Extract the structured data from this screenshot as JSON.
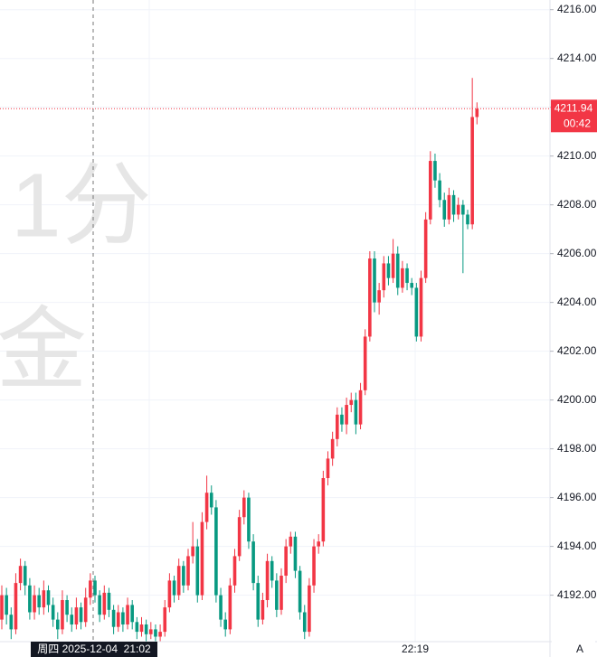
{
  "chart_data": {
    "type": "candlestick",
    "watermark": [
      "1分",
      "金"
    ],
    "up_color": "#f23645",
    "down_color": "#089981",
    "ylim": [
      4189.9,
      4216.3
    ],
    "yticks": [
      {
        "value": 4192,
        "label": "4192.00"
      },
      {
        "value": 4194,
        "label": "4194.00"
      },
      {
        "value": 4196,
        "label": "4196.00"
      },
      {
        "value": 4198,
        "label": "4198.00"
      },
      {
        "value": 4200,
        "label": "4200.00"
      },
      {
        "value": 4202,
        "label": "4202.00"
      },
      {
        "value": 4204,
        "label": "4204.00"
      },
      {
        "value": 4206,
        "label": "4206.00"
      },
      {
        "value": 4208,
        "label": "4208.00"
      },
      {
        "value": 4210,
        "label": "4210.00"
      },
      {
        "value": 4212,
        "label": "4212.00"
      },
      {
        "value": 4214,
        "label": "4214.00"
      },
      {
        "value": 4216,
        "label": "4216.00"
      }
    ],
    "grid": true,
    "time_labels": [
      "22:19"
    ],
    "crosshair_label": "周四 2025-12-04  21:02",
    "countdown": "00:42",
    "axis_button": "A",
    "ohlc": [
      [
        4191.0,
        4192.4,
        4190.6,
        4192.0
      ],
      [
        4192.0,
        4192.3,
        4190.8,
        4191.2
      ],
      [
        4191.2,
        4191.5,
        4190.2,
        4190.6
      ],
      [
        4190.6,
        4192.9,
        4190.4,
        4192.5
      ],
      [
        4192.5,
        4193.5,
        4192.2,
        4193.2
      ],
      [
        4193.2,
        4193.4,
        4192.0,
        4192.4
      ],
      [
        4192.4,
        4192.7,
        4191.0,
        4191.3
      ],
      [
        4191.3,
        4192.4,
        4191.0,
        4192.0
      ],
      [
        4192.0,
        4192.3,
        4191.2,
        4191.5
      ],
      [
        4191.5,
        4192.6,
        4191.2,
        4192.2
      ],
      [
        4192.2,
        4192.4,
        4191.3,
        4191.6
      ],
      [
        4191.6,
        4191.9,
        4190.7,
        4191.0
      ],
      [
        4191.0,
        4191.3,
        4190.2,
        4190.6
      ],
      [
        4190.6,
        4192.2,
        4190.4,
        4191.8
      ],
      [
        4191.8,
        4192.0,
        4190.9,
        4191.2
      ],
      [
        4191.2,
        4191.5,
        4190.5,
        4190.8
      ],
      [
        4190.8,
        4191.9,
        4190.6,
        4191.5
      ],
      [
        4191.5,
        4191.7,
        4190.6,
        4190.9
      ],
      [
        4190.9,
        4192.3,
        4190.7,
        4191.9
      ],
      [
        4191.9,
        4192.9,
        4191.6,
        4192.6
      ],
      [
        4192.6,
        4192.8,
        4191.7,
        4192.0
      ],
      [
        4192.0,
        4192.2,
        4190.9,
        4191.2
      ],
      [
        4191.2,
        4192.4,
        4191.0,
        4192.1
      ],
      [
        4192.1,
        4192.3,
        4191.1,
        4191.4
      ],
      [
        4191.4,
        4191.6,
        4190.4,
        4190.7
      ],
      [
        4190.7,
        4191.6,
        4190.5,
        4191.3
      ],
      [
        4191.3,
        4191.5,
        4190.5,
        4190.8
      ],
      [
        4190.8,
        4191.9,
        4190.6,
        4191.6
      ],
      [
        4191.6,
        4191.8,
        4190.6,
        4190.9
      ],
      [
        4190.9,
        4191.1,
        4190.2,
        4190.5
      ],
      [
        4190.5,
        4191.1,
        4190.3,
        4190.8
      ],
      [
        4190.8,
        4191.0,
        4190.1,
        4190.4
      ],
      [
        4190.4,
        4190.9,
        4190.2,
        4190.6
      ],
      [
        4190.6,
        4190.8,
        4190.0,
        4190.3
      ],
      [
        4190.3,
        4190.8,
        4190.1,
        4190.5
      ],
      [
        4190.5,
        4191.8,
        4190.3,
        4191.5
      ],
      [
        4191.5,
        4192.9,
        4191.3,
        4192.6
      ],
      [
        4192.6,
        4192.8,
        4191.7,
        4192.0
      ],
      [
        4192.0,
        4193.5,
        4191.8,
        4193.2
      ],
      [
        4193.2,
        4193.4,
        4192.1,
        4192.4
      ],
      [
        4192.4,
        4193.9,
        4192.2,
        4193.6
      ],
      [
        4193.6,
        4195.0,
        4193.3,
        4194.0
      ],
      [
        4194.0,
        4194.3,
        4191.7,
        4192.0
      ],
      [
        4192.0,
        4195.4,
        4191.8,
        4195.0
      ],
      [
        4195.0,
        4196.9,
        4194.7,
        4196.2
      ],
      [
        4196.2,
        4196.5,
        4195.3,
        4195.6
      ],
      [
        4195.6,
        4195.9,
        4191.7,
        4192.0
      ],
      [
        4192.0,
        4192.3,
        4190.7,
        4191.0
      ],
      [
        4191.0,
        4191.3,
        4190.3,
        4190.6
      ],
      [
        4190.6,
        4192.7,
        4190.4,
        4192.4
      ],
      [
        4192.4,
        4193.9,
        4192.1,
        4193.6
      ],
      [
        4193.6,
        4195.5,
        4193.4,
        4195.2
      ],
      [
        4195.2,
        4196.3,
        4194.9,
        4196.0
      ],
      [
        4196.0,
        4196.2,
        4193.9,
        4194.2
      ],
      [
        4194.2,
        4194.5,
        4192.2,
        4192.5
      ],
      [
        4192.5,
        4192.8,
        4190.7,
        4191.0
      ],
      [
        4191.0,
        4192.1,
        4190.8,
        4191.8
      ],
      [
        4191.8,
        4193.7,
        4191.5,
        4193.4
      ],
      [
        4193.4,
        4193.6,
        4192.3,
        4192.6
      ],
      [
        4192.6,
        4192.9,
        4191.1,
        4191.4
      ],
      [
        4191.4,
        4193.1,
        4191.2,
        4192.8
      ],
      [
        4192.8,
        4194.3,
        4192.5,
        4194.0
      ],
      [
        4194.0,
        4194.6,
        4193.7,
        4194.4
      ],
      [
        4194.4,
        4194.6,
        4192.7,
        4193.0
      ],
      [
        4193.0,
        4193.2,
        4191.0,
        4191.3
      ],
      [
        4191.3,
        4191.6,
        4190.2,
        4190.5
      ],
      [
        4190.5,
        4192.7,
        4190.3,
        4192.4
      ],
      [
        4192.4,
        4194.3,
        4192.1,
        4194.0
      ],
      [
        4194.0,
        4194.5,
        4193.7,
        4194.2
      ],
      [
        4194.2,
        4197.1,
        4194.0,
        4196.8
      ],
      [
        4196.8,
        4197.9,
        4196.5,
        4197.6
      ],
      [
        4197.6,
        4198.7,
        4197.3,
        4198.4
      ],
      [
        4198.4,
        4199.7,
        4198.1,
        4199.4
      ],
      [
        4199.4,
        4199.7,
        4198.7,
        4199.0
      ],
      [
        4199.0,
        4200.1,
        4198.6,
        4199.8
      ],
      [
        4199.8,
        4200.3,
        4199.5,
        4200.0
      ],
      [
        4200.0,
        4200.3,
        4198.6,
        4199.0
      ],
      [
        4199.0,
        4200.7,
        4198.8,
        4200.4
      ],
      [
        4200.4,
        4202.9,
        4200.2,
        4202.6
      ],
      [
        4202.6,
        4206.1,
        4202.4,
        4205.8
      ],
      [
        4205.8,
        4206.1,
        4203.6,
        4204.0
      ],
      [
        4204.0,
        4204.8,
        4203.5,
        4204.5
      ],
      [
        4204.5,
        4205.9,
        4204.2,
        4205.6
      ],
      [
        4205.6,
        4205.9,
        4204.7,
        4205.0
      ],
      [
        4205.0,
        4206.6,
        4204.8,
        4206.0
      ],
      [
        4206.0,
        4206.3,
        4204.3,
        4204.6
      ],
      [
        4204.6,
        4205.7,
        4204.4,
        4205.4
      ],
      [
        4205.4,
        4205.6,
        4204.5,
        4204.8
      ],
      [
        4204.8,
        4205.0,
        4204.3,
        4204.6
      ],
      [
        4204.6,
        4204.8,
        4202.4,
        4202.6
      ],
      [
        4202.6,
        4205.3,
        4202.4,
        4205.0
      ],
      [
        4205.0,
        4207.7,
        4204.8,
        4207.4
      ],
      [
        4207.4,
        4210.2,
        4207.2,
        4209.8
      ],
      [
        4209.8,
        4210.1,
        4208.7,
        4209.0
      ],
      [
        4209.0,
        4209.3,
        4207.9,
        4208.2
      ],
      [
        4208.2,
        4208.5,
        4207.1,
        4207.4
      ],
      [
        4207.4,
        4208.7,
        4207.2,
        4208.4
      ],
      [
        4208.4,
        4208.6,
        4207.3,
        4207.6
      ],
      [
        4207.6,
        4208.3,
        4207.4,
        4208.0
      ],
      [
        4208.0,
        4208.2,
        4205.2,
        4207.6
      ],
      [
        4207.6,
        4207.8,
        4207.0,
        4207.2
      ],
      [
        4207.2,
        4213.2,
        4207.0,
        4211.6
      ],
      [
        4211.6,
        4212.2,
        4211.3,
        4211.94
      ]
    ]
  }
}
